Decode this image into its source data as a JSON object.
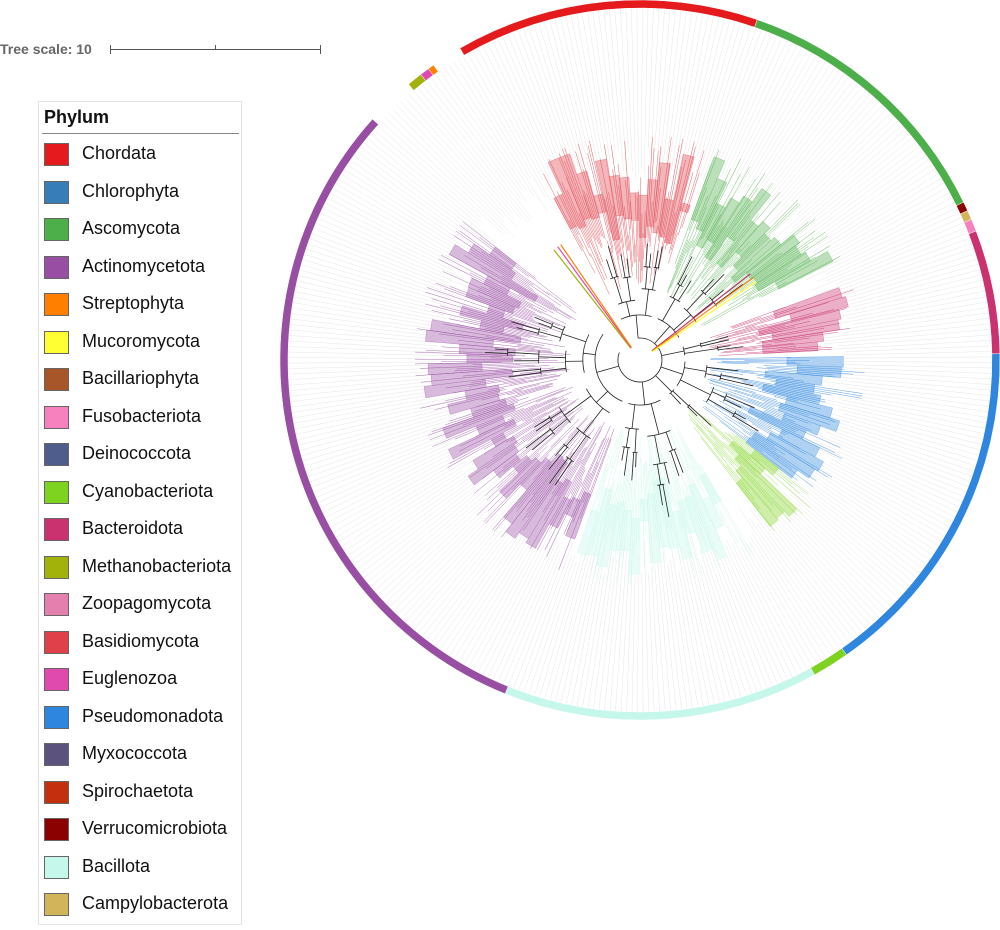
{
  "scale": {
    "label": "Tree scale: 10"
  },
  "legend": {
    "title": "Phylum",
    "items": [
      {
        "label": "Chordata",
        "color": "#e41a1c"
      },
      {
        "label": "Chlorophyta",
        "color": "#377eb8"
      },
      {
        "label": "Ascomycota",
        "color": "#4daf4a"
      },
      {
        "label": "Actinomycetota",
        "color": "#984ea3"
      },
      {
        "label": "Streptophyta",
        "color": "#ff7f00"
      },
      {
        "label": "Mucoromycota",
        "color": "#ffff33"
      },
      {
        "label": "Bacillariophyta",
        "color": "#a65628"
      },
      {
        "label": "Fusobacteriota",
        "color": "#f781bf"
      },
      {
        "label": "Deinococcota",
        "color": "#4e5d8c"
      },
      {
        "label": "Cyanobacteriota",
        "color": "#7ed321"
      },
      {
        "label": "Bacteroidota",
        "color": "#c9316f"
      },
      {
        "label": "Methanobacteriota",
        "color": "#a3b20a"
      },
      {
        "label": "Zoopagomycota",
        "color": "#e57fae"
      },
      {
        "label": "Basidiomycota",
        "color": "#e0404a"
      },
      {
        "label": "Euglenozoa",
        "color": "#e04aae"
      },
      {
        "label": "Pseudomonadota",
        "color": "#2e86de"
      },
      {
        "label": "Myxococcota",
        "color": "#5b537e"
      },
      {
        "label": "Spirochaetota",
        "color": "#c42f0d"
      },
      {
        "label": "Verrucomicrobiota",
        "color": "#8b0000"
      },
      {
        "label": "Bacillota",
        "color": "#c5f7ea"
      },
      {
        "label": "Campylobacterota",
        "color": "#d2b55b"
      }
    ]
  },
  "ring": [
    {
      "phylum": "Chordata",
      "start": -120,
      "end": -71
    },
    {
      "phylum": "Ascomycota",
      "start": -71,
      "end": -26
    },
    {
      "phylum": "Verrucomicrobiota",
      "start": -26,
      "end": -24.5
    },
    {
      "phylum": "Campylobacterota",
      "start": -24.5,
      "end": -23
    },
    {
      "phylum": "Fusobacteriota",
      "start": -23,
      "end": -21
    },
    {
      "phylum": "Bacteroidota",
      "start": -21,
      "end": -1
    },
    {
      "phylum": "Pseudomonadota",
      "start": -1,
      "end": 55
    },
    {
      "phylum": "Cyanobacteriota",
      "start": 55,
      "end": 61
    },
    {
      "phylum": "Bacillota",
      "start": 61,
      "end": 112
    },
    {
      "phylum": "Actinomycetota",
      "start": 112,
      "end": 222
    },
    {
      "phylum": "Methanobacteriota",
      "start": 230,
      "end": 232.5
    },
    {
      "phylum": "Euglenozoa",
      "start": 232.5,
      "end": 234
    },
    {
      "phylum": "Streptophyta",
      "start": 234,
      "end": 235
    }
  ],
  "clades": [
    {
      "phylum": "Basidiomycota",
      "start": -118,
      "end": -72
    },
    {
      "phylum": "Ascomycota",
      "start": -70,
      "end": -27
    },
    {
      "phylum": "Bacteroidota",
      "start": -20,
      "end": -3
    },
    {
      "phylum": "Pseudomonadota",
      "start": -1,
      "end": 38
    },
    {
      "phylum": "Cyanobacteriota",
      "start": 38,
      "end": 52
    },
    {
      "phylum": "Bacillota",
      "start": 60,
      "end": 108
    },
    {
      "phylum": "Actinomycetota",
      "start": 110,
      "end": 218
    }
  ]
}
